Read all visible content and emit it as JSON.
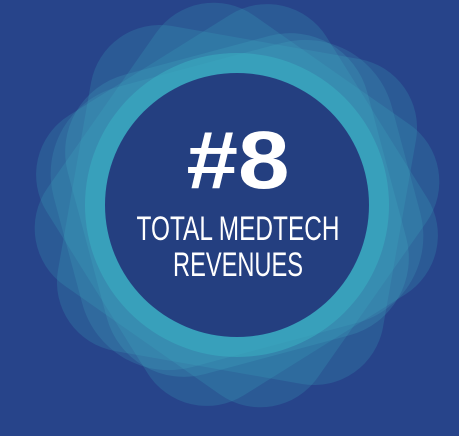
{
  "badge": {
    "rank": "#8",
    "label_lines": [
      "TOTAL MEDTECH",
      "REVENUES"
    ]
  }
}
